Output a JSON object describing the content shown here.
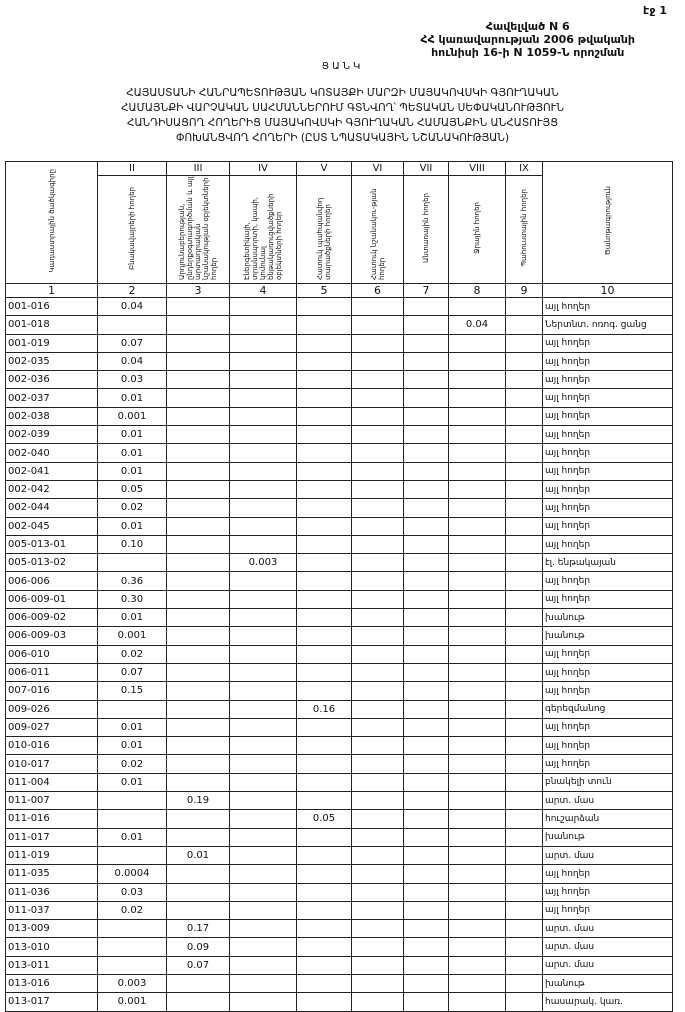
{
  "page_label": "էջ 1",
  "annex": [
    "Հավելված N 6",
    "ՀՀ կառավարության 2006 թվականի",
    "հունիսի 16-ի N 1059-Ն որոշման"
  ],
  "list_title": "ՑԱՆԿ",
  "main_title": [
    "ՀԱՅԱՍՏԱՆԻ ՀԱՆՐԱՊԵՏՈՒԹՅԱՆ ԿՈՏԱՅՔԻ ՄԱՐԶԻ ՄԱՅԱԿՈՎՍԿԻ ԳՅՈՒՂԱԿԱՆ",
    "ՀԱՄԱՅՆՔԻ ՎԱՐՉԱԿԱՆ ՍԱՀՄԱՆՆԵՐՈՒՄ ԳՏՆՎՈՂ՝ ՊԵՏԱԿԱՆ ՍԵՓԱԿԱՆՈՒԹՅՈՒՆ",
    "ՀԱՆԴԻՍԱՑՈՂ ՀՈՂԵՐԻՑ ՄԱՅԱԿՈՎՍԿԻ ԳՅՈՒՂԱԿԱՆ ՀԱՄԱՅՆՔԻՆ ԱՆՀԱՏՈՒՅՑ",
    "ՓՈԽԱՆՑՎՈՂ ՀՈՂԵՐԻ (ԸՍՏ ՆՊԱՏԱԿԱՅԻՆ ՆՇԱՆԱԿՈՒԹՅԱՆ)"
  ],
  "table": {
    "roman": [
      "",
      "II",
      "III",
      "IV",
      "V",
      "VI",
      "VII",
      "VIII",
      "IX",
      ""
    ],
    "headers": [
      "Կադաստրային ծածկագիրը",
      "Բնակավայրերի հողեր",
      "Արդյունաբերության, ընդերքօգտագործման և այլ արտադրական նշանակության օբյեկտների հողեր",
      "Էներգետիկայի, տրանսպորտի, կապի, կոմունալ ենթակառուցվածքների օբյեկտների հողեր",
      "Հատուկ պահպանվող տարածքների հողեր",
      "Հատուկ նշանակու-թյան հողեր",
      "Անտառային հողեր",
      "Ջրային հողեր",
      "Պահուստային հողեր",
      "Ծանոթագրություն"
    ],
    "numbers": [
      "1",
      "2",
      "3",
      "4",
      "5",
      "6",
      "7",
      "8",
      "9",
      "10"
    ],
    "rows": [
      [
        "001-016",
        "0.04",
        "",
        "",
        "",
        "",
        "",
        "",
        "",
        "այլ հողեր"
      ],
      [
        "001-018",
        "",
        "",
        "",
        "",
        "",
        "",
        "0.04",
        "",
        "Ներտնտ. ոռոգ. ցանց"
      ],
      [
        "001-019",
        "0.07",
        "",
        "",
        "",
        "",
        "",
        "",
        "",
        "այլ հողեր"
      ],
      [
        "002-035",
        "0.04",
        "",
        "",
        "",
        "",
        "",
        "",
        "",
        "այլ հողեր"
      ],
      [
        "002-036",
        "0.03",
        "",
        "",
        "",
        "",
        "",
        "",
        "",
        "այլ հողեր"
      ],
      [
        "002-037",
        "0.01",
        "",
        "",
        "",
        "",
        "",
        "",
        "",
        "այլ հողեր"
      ],
      [
        "002-038",
        "0.001",
        "",
        "",
        "",
        "",
        "",
        "",
        "",
        "այլ հողեր"
      ],
      [
        "002-039",
        "0.01",
        "",
        "",
        "",
        "",
        "",
        "",
        "",
        "այլ հողեր"
      ],
      [
        "002-040",
        "0.01",
        "",
        "",
        "",
        "",
        "",
        "",
        "",
        "այլ հողեր"
      ],
      [
        "002-041",
        "0.01",
        "",
        "",
        "",
        "",
        "",
        "",
        "",
        "այլ հողեր"
      ],
      [
        "002-042",
        "0.05",
        "",
        "",
        "",
        "",
        "",
        "",
        "",
        "այլ հողեր"
      ],
      [
        "002-044",
        "0.02",
        "",
        "",
        "",
        "",
        "",
        "",
        "",
        "այլ հողեր"
      ],
      [
        "002-045",
        "0.01",
        "",
        "",
        "",
        "",
        "",
        "",
        "",
        "այլ հողեր"
      ],
      [
        "005-013-01",
        "0.10",
        "",
        "",
        "",
        "",
        "",
        "",
        "",
        "այլ հողեր"
      ],
      [
        "005-013-02",
        "",
        "",
        "0.003",
        "",
        "",
        "",
        "",
        "",
        "էլ. ենթակայան"
      ],
      [
        "006-006",
        "0.36",
        "",
        "",
        "",
        "",
        "",
        "",
        "",
        "այլ հողեր"
      ],
      [
        "006-009-01",
        "0.30",
        "",
        "",
        "",
        "",
        "",
        "",
        "",
        "այլ հողեր"
      ],
      [
        "006-009-02",
        "0.01",
        "",
        "",
        "",
        "",
        "",
        "",
        "",
        "խանութ"
      ],
      [
        "006-009-03",
        "0.001",
        "",
        "",
        "",
        "",
        "",
        "",
        "",
        "խանութ"
      ],
      [
        "006-010",
        "0.02",
        "",
        "",
        "",
        "",
        "",
        "",
        "",
        "այլ հողեր"
      ],
      [
        "006-011",
        "0.07",
        "",
        "",
        "",
        "",
        "",
        "",
        "",
        "այլ հողեր"
      ],
      [
        "007-016",
        "0.15",
        "",
        "",
        "",
        "",
        "",
        "",
        "",
        "այլ հողեր"
      ],
      [
        "009-026",
        "",
        "",
        "",
        "0.16",
        "",
        "",
        "",
        "",
        "գերեզմանոց"
      ],
      [
        "009-027",
        "0.01",
        "",
        "",
        "",
        "",
        "",
        "",
        "",
        "այլ հողեր"
      ],
      [
        "010-016",
        "0.01",
        "",
        "",
        "",
        "",
        "",
        "",
        "",
        "այլ հողեր"
      ],
      [
        "010-017",
        "0.02",
        "",
        "",
        "",
        "",
        "",
        "",
        "",
        "այլ հողեր"
      ],
      [
        "011-004",
        "0.01",
        "",
        "",
        "",
        "",
        "",
        "",
        "",
        "բնակելի տուն"
      ],
      [
        "011-007",
        "",
        "0.19",
        "",
        "",
        "",
        "",
        "",
        "",
        "արտ. մաս"
      ],
      [
        "011-016",
        "",
        "",
        "",
        "0.05",
        "",
        "",
        "",
        "",
        "հուշարձան"
      ],
      [
        "011-017",
        "0.01",
        "",
        "",
        "",
        "",
        "",
        "",
        "",
        "խանութ"
      ],
      [
        "011-019",
        "",
        "0.01",
        "",
        "",
        "",
        "",
        "",
        "",
        "արտ. մաս"
      ],
      [
        "011-035",
        "0.0004",
        "",
        "",
        "",
        "",
        "",
        "",
        "",
        "այլ հողեր"
      ],
      [
        "011-036",
        "0.03",
        "",
        "",
        "",
        "",
        "",
        "",
        "",
        "այլ հողեր"
      ],
      [
        "011-037",
        "0.02",
        "",
        "",
        "",
        "",
        "",
        "",
        "",
        "այլ հողեր"
      ],
      [
        "013-009",
        "",
        "0.17",
        "",
        "",
        "",
        "",
        "",
        "",
        "արտ. մաս"
      ],
      [
        "013-010",
        "",
        "0.09",
        "",
        "",
        "",
        "",
        "",
        "",
        "արտ. մաս"
      ],
      [
        "013-011",
        "",
        "0.07",
        "",
        "",
        "",
        "",
        "",
        "",
        "արտ. մաս"
      ],
      [
        "013-016",
        "0.003",
        "",
        "",
        "",
        "",
        "",
        "",
        "",
        "խանութ"
      ],
      [
        "013-017",
        "0.001",
        "",
        "",
        "",
        "",
        "",
        "",
        "",
        "հասարակ. կառ."
      ]
    ]
  }
}
